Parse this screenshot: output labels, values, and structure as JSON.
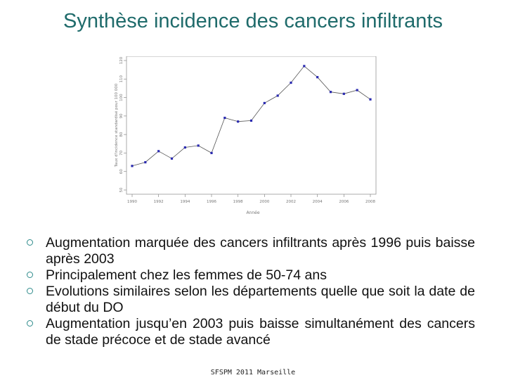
{
  "slide": {
    "title": "Synthèse incidence des cancers infiltrants"
  },
  "chart_data": {
    "type": "line",
    "title": "",
    "xlabel": "Année",
    "ylabel": "Taux d'incidence standardisé pour 100 000",
    "x": [
      1990,
      1991,
      1992,
      1993,
      1994,
      1995,
      1996,
      1997,
      1998,
      1999,
      2000,
      2001,
      2002,
      2003,
      2004,
      2005,
      2006,
      2007,
      2008
    ],
    "series": [
      {
        "values": [
          63,
          65,
          71,
          67,
          73,
          74,
          70,
          89,
          87,
          87.5,
          97,
          101,
          108,
          117,
          111,
          103,
          102,
          104,
          99
        ]
      }
    ],
    "xticks": [
      "1990",
      "1992",
      "1994",
      "1996",
      "1998",
      "2000",
      "2002",
      "2004",
      "2006",
      "2008"
    ],
    "yticks": [
      "50",
      "60",
      "70",
      "80",
      "90",
      "100",
      "110",
      "120"
    ],
    "xlim": [
      1990,
      2008
    ],
    "ylim": [
      50,
      120
    ],
    "marker_color": "#2a2ab0",
    "line_color": "#555555",
    "grid": false
  },
  "bullets": [
    "Augmentation marquée des cancers infiltrants après 1996 puis baisse après 2003",
    "Principalement chez les femmes de 50-74 ans",
    "Evolutions similaires selon les départements quelle que soit la date de début du DO",
    "Augmentation jusqu’en 2003 puis baisse simultanément des cancers de stade précoce et de stade avancé"
  ],
  "footer": "SFSPM 2011 Marseille",
  "colors": {
    "title": "#1f6b6b",
    "bullet": "#2e8b8b"
  }
}
